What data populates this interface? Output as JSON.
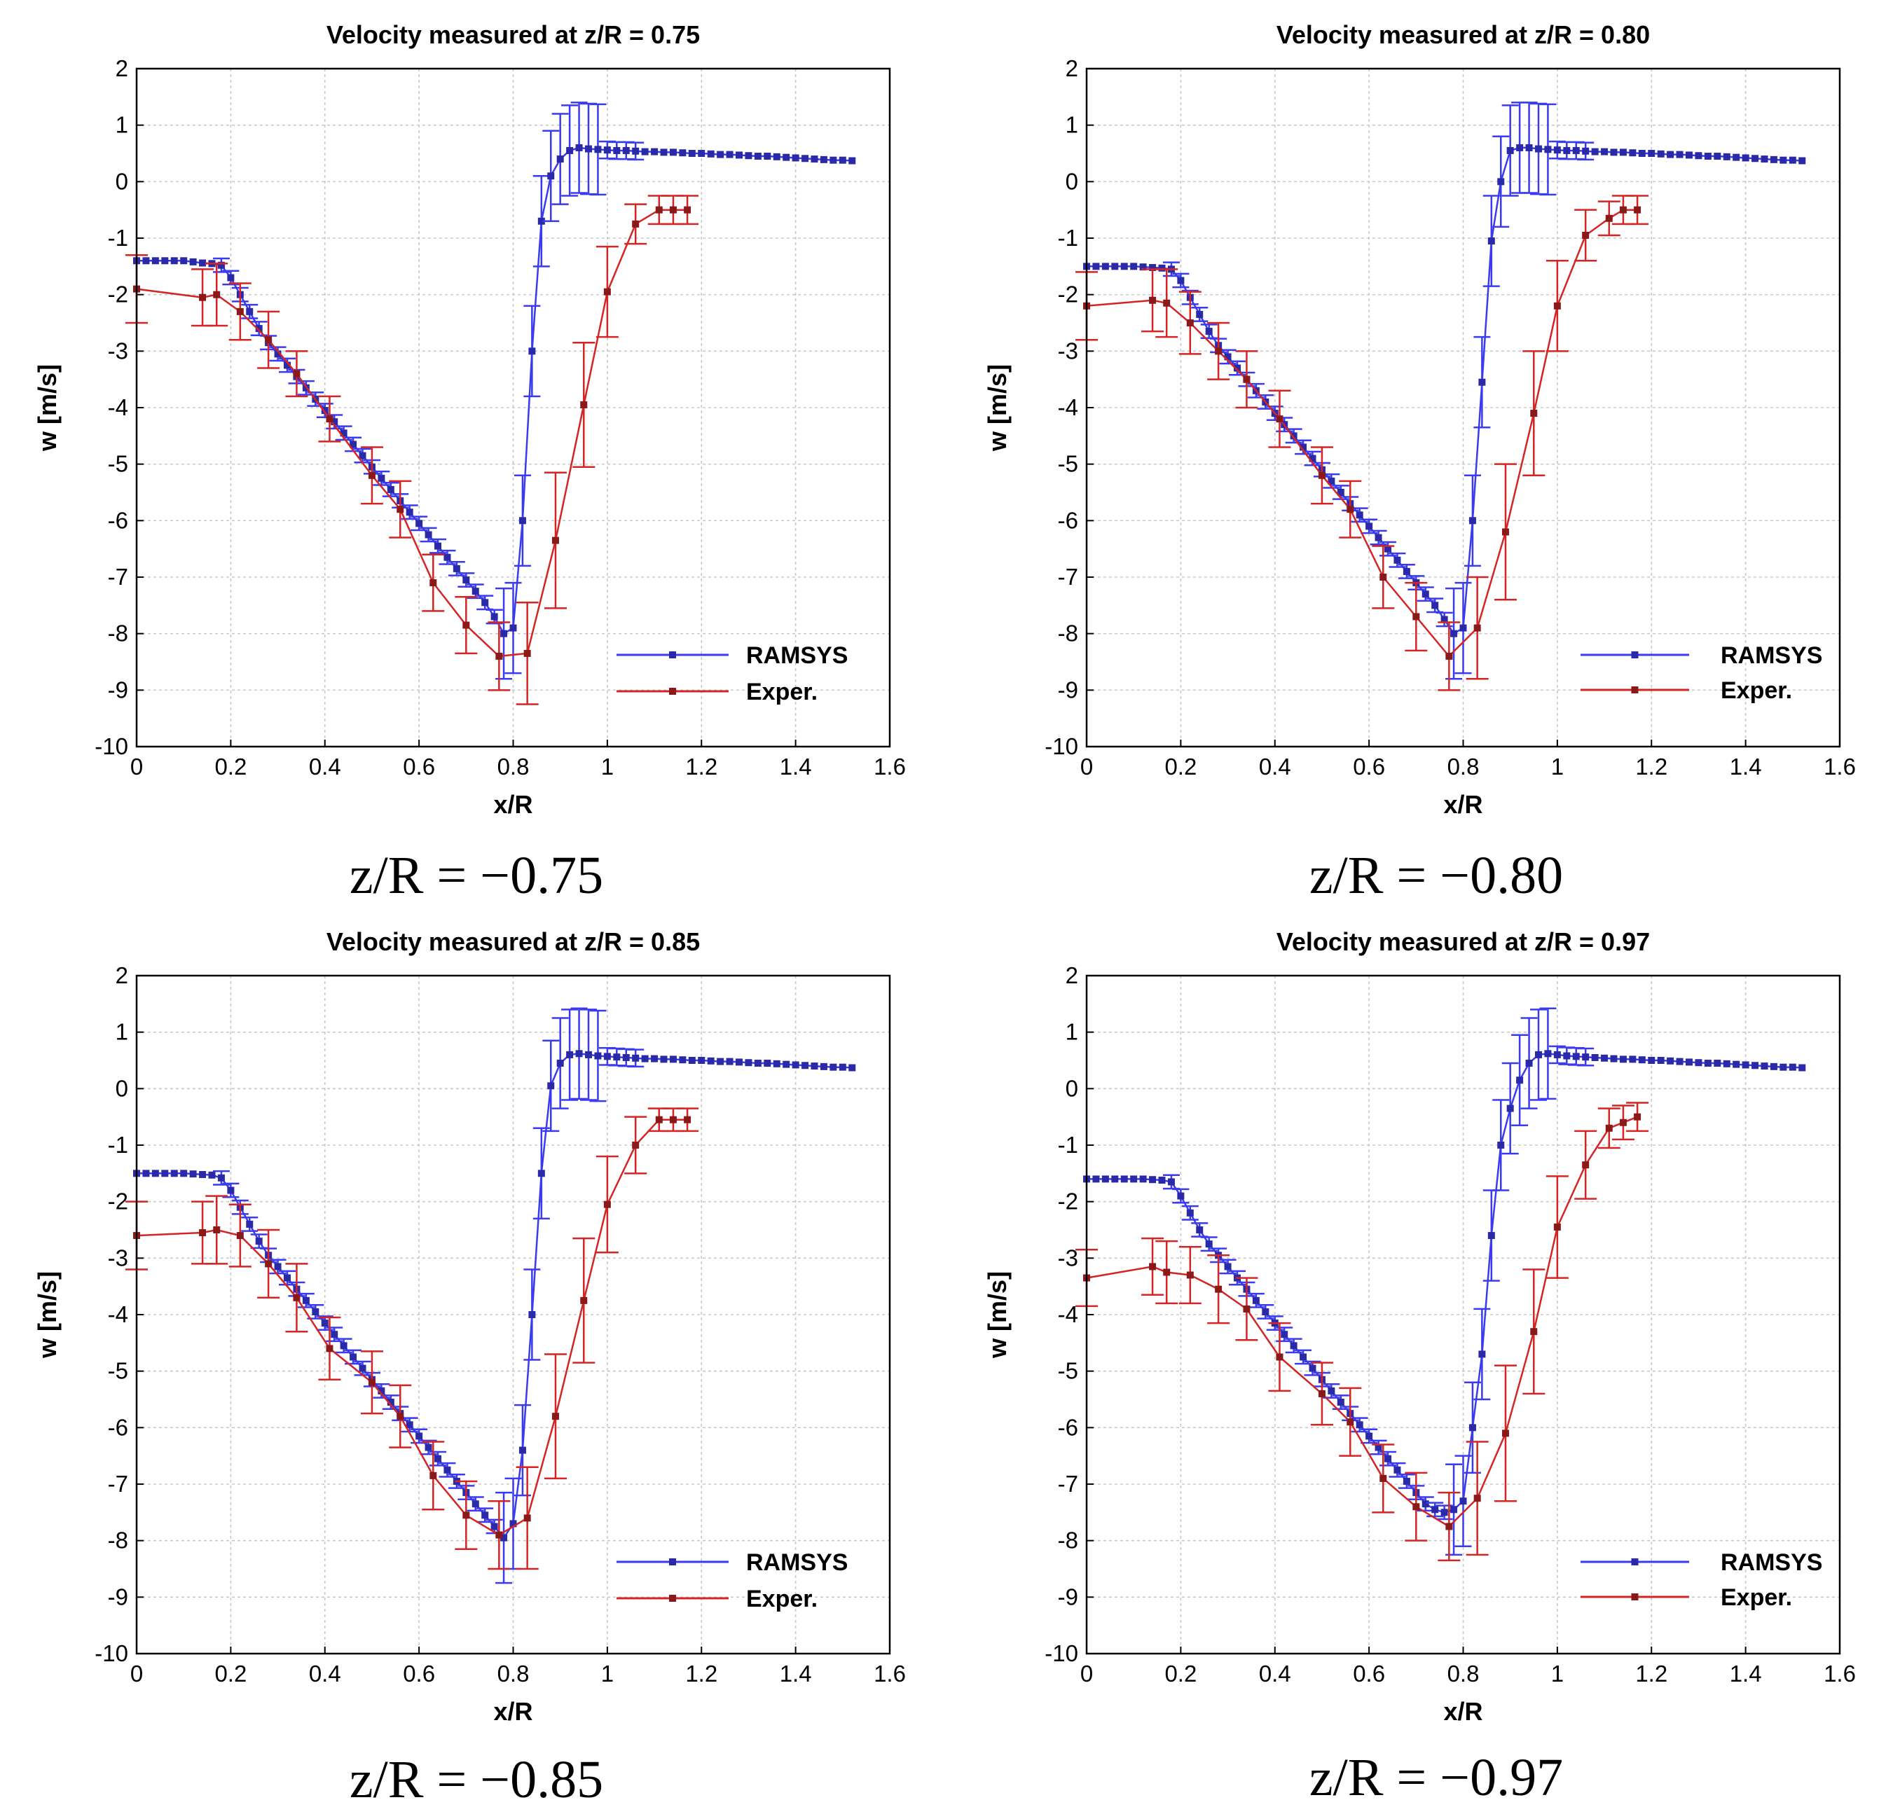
{
  "figure": {
    "series_colors": {
      "RAMSYS": "#3a3af0",
      "Exper.": "#d42424"
    }
  },
  "chart_data": [
    {
      "type": "line",
      "title": "Velocity measured at z/R = 0.75",
      "xlabel": "x/R",
      "ylabel": "w [m/s]",
      "xlim": [
        0,
        1.6
      ],
      "ylim": [
        -10,
        2
      ],
      "xticks": [
        "0",
        "0.2",
        "0.4",
        "0.6",
        "0.8",
        "1",
        "1.2",
        "1.4",
        "1.6"
      ],
      "yticks": [
        "2",
        "1",
        "0",
        "-1",
        "-2",
        "-3",
        "-4",
        "-5",
        "-6",
        "-7",
        "-8",
        "-9",
        "-10"
      ],
      "grid": true,
      "legend_position": "bottom-right",
      "caption": "z/R = −0.75",
      "series": [
        {
          "name": "RAMSYS",
          "color": "#3a3af0",
          "x": [
            0,
            0.02,
            0.04,
            0.06,
            0.08,
            0.1,
            0.12,
            0.14,
            0.16,
            0.18,
            0.2,
            0.22,
            0.24,
            0.26,
            0.28,
            0.3,
            0.32,
            0.34,
            0.36,
            0.38,
            0.4,
            0.42,
            0.44,
            0.46,
            0.48,
            0.5,
            0.52,
            0.54,
            0.56,
            0.58,
            0.6,
            0.62,
            0.64,
            0.66,
            0.68,
            0.7,
            0.72,
            0.74,
            0.76,
            0.78,
            0.8,
            0.82,
            0.84,
            0.86,
            0.88,
            0.9,
            0.92,
            0.94,
            0.96,
            0.98,
            1.0,
            1.02,
            1.04,
            1.06,
            1.08,
            1.1,
            1.12,
            1.14,
            1.16,
            1.18,
            1.2,
            1.22,
            1.24,
            1.26,
            1.28,
            1.3,
            1.32,
            1.34,
            1.36,
            1.38,
            1.4,
            1.42,
            1.44,
            1.46,
            1.48,
            1.5,
            1.52
          ],
          "y": [
            -1.4,
            -1.4,
            -1.4,
            -1.4,
            -1.4,
            -1.4,
            -1.42,
            -1.44,
            -1.45,
            -1.48,
            -1.7,
            -2.0,
            -2.3,
            -2.6,
            -2.85,
            -3.05,
            -3.25,
            -3.45,
            -3.65,
            -3.85,
            -4.05,
            -4.25,
            -4.45,
            -4.65,
            -4.85,
            -5.05,
            -5.25,
            -5.45,
            -5.65,
            -5.85,
            -6.05,
            -6.25,
            -6.45,
            -6.65,
            -6.85,
            -7.05,
            -7.25,
            -7.45,
            -7.7,
            -8.0,
            -7.9,
            -6.0,
            -3.0,
            -0.7,
            0.1,
            0.4,
            0.55,
            0.6,
            0.58,
            0.57,
            0.56,
            0.55,
            0.55,
            0.54,
            0.53,
            0.53,
            0.52,
            0.52,
            0.51,
            0.5,
            0.5,
            0.49,
            0.48,
            0.48,
            0.47,
            0.46,
            0.45,
            0.45,
            0.44,
            0.43,
            0.42,
            0.41,
            0.4,
            0.39,
            0.38,
            0.38,
            0.37
          ]
        },
        {
          "name": "Exper.",
          "color": "#d42424",
          "x": [
            0,
            0.14,
            0.17,
            0.22,
            0.28,
            0.34,
            0.41,
            0.5,
            0.56,
            0.63,
            0.7,
            0.77,
            0.83,
            0.89,
            0.95,
            1.0,
            1.06,
            1.11,
            1.14,
            1.17
          ],
          "y": [
            -1.9,
            -2.05,
            -2.0,
            -2.3,
            -2.8,
            -3.4,
            -4.2,
            -5.2,
            -5.8,
            -7.1,
            -7.85,
            -8.4,
            -8.35,
            -6.35,
            -3.95,
            -1.95,
            -0.75,
            -0.5,
            -0.5,
            -0.5
          ],
          "err": [
            0.6,
            0.5,
            0.55,
            0.5,
            0.5,
            0.4,
            0.4,
            0.5,
            0.5,
            0.5,
            0.5,
            0.6,
            0.9,
            1.2,
            1.1,
            0.8,
            0.35,
            0.25,
            0.25,
            0.25
          ]
        }
      ]
    },
    {
      "type": "line",
      "title": "Velocity measured at z/R = 0.80",
      "xlabel": "x/R",
      "ylabel": "w [m/s]",
      "xlim": [
        0,
        1.6
      ],
      "ylim": [
        -10,
        2
      ],
      "xticks": [
        "0",
        "0.2",
        "0.4",
        "0.6",
        "0.8",
        "1",
        "1.2",
        "1.4",
        "1.6"
      ],
      "yticks": [
        "2",
        "1",
        "0",
        "-1",
        "-2",
        "-3",
        "-4",
        "-5",
        "-6",
        "-7",
        "-8",
        "-9",
        "-10"
      ],
      "grid": true,
      "legend_position": "bottom-right",
      "caption": "z/R = −0.80",
      "series": [
        {
          "name": "RAMSYS",
          "color": "#3a3af0",
          "x": [
            0,
            0.02,
            0.04,
            0.06,
            0.08,
            0.1,
            0.12,
            0.14,
            0.16,
            0.18,
            0.2,
            0.22,
            0.24,
            0.26,
            0.28,
            0.3,
            0.32,
            0.34,
            0.36,
            0.38,
            0.4,
            0.42,
            0.44,
            0.46,
            0.48,
            0.5,
            0.52,
            0.54,
            0.56,
            0.58,
            0.6,
            0.62,
            0.64,
            0.66,
            0.68,
            0.7,
            0.72,
            0.74,
            0.76,
            0.78,
            0.8,
            0.82,
            0.84,
            0.86,
            0.88,
            0.9,
            0.92,
            0.94,
            0.96,
            0.98,
            1.0,
            1.02,
            1.04,
            1.06,
            1.08,
            1.1,
            1.12,
            1.14,
            1.16,
            1.18,
            1.2,
            1.22,
            1.24,
            1.26,
            1.28,
            1.3,
            1.32,
            1.34,
            1.36,
            1.38,
            1.4,
            1.42,
            1.44,
            1.46,
            1.48,
            1.5,
            1.52
          ],
          "y": [
            -1.5,
            -1.5,
            -1.5,
            -1.5,
            -1.5,
            -1.5,
            -1.51,
            -1.52,
            -1.53,
            -1.55,
            -1.75,
            -2.05,
            -2.35,
            -2.65,
            -2.9,
            -3.1,
            -3.3,
            -3.5,
            -3.7,
            -3.9,
            -4.1,
            -4.3,
            -4.5,
            -4.7,
            -4.9,
            -5.1,
            -5.3,
            -5.5,
            -5.7,
            -5.9,
            -6.1,
            -6.3,
            -6.5,
            -6.7,
            -6.9,
            -7.1,
            -7.3,
            -7.5,
            -7.75,
            -8.0,
            -7.9,
            -6.0,
            -3.55,
            -1.05,
            0.0,
            0.55,
            0.6,
            0.6,
            0.58,
            0.57,
            0.56,
            0.55,
            0.55,
            0.54,
            0.53,
            0.53,
            0.52,
            0.52,
            0.51,
            0.5,
            0.5,
            0.49,
            0.48,
            0.48,
            0.47,
            0.46,
            0.45,
            0.45,
            0.44,
            0.43,
            0.42,
            0.41,
            0.4,
            0.39,
            0.38,
            0.38,
            0.37
          ]
        },
        {
          "name": "Exper.",
          "color": "#d42424",
          "x": [
            0,
            0.14,
            0.17,
            0.22,
            0.28,
            0.34,
            0.41,
            0.5,
            0.56,
            0.63,
            0.7,
            0.77,
            0.83,
            0.89,
            0.95,
            1.0,
            1.06,
            1.11,
            1.14,
            1.17
          ],
          "y": [
            -2.2,
            -2.1,
            -2.15,
            -2.5,
            -3.0,
            -3.5,
            -4.2,
            -5.2,
            -5.8,
            -7.0,
            -7.7,
            -8.4,
            -7.9,
            -6.2,
            -4.1,
            -2.2,
            -0.95,
            -0.65,
            -0.5,
            -0.5
          ],
          "err": [
            0.6,
            0.55,
            0.6,
            0.55,
            0.5,
            0.5,
            0.5,
            0.5,
            0.5,
            0.55,
            0.6,
            0.6,
            0.9,
            1.2,
            1.1,
            0.8,
            0.45,
            0.3,
            0.25,
            0.25
          ]
        }
      ]
    },
    {
      "type": "line",
      "title": "Velocity measured at z/R = 0.85",
      "xlabel": "x/R",
      "ylabel": "w [m/s]",
      "xlim": [
        0,
        1.6
      ],
      "ylim": [
        -10,
        2
      ],
      "xticks": [
        "0",
        "0.2",
        "0.4",
        "0.6",
        "0.8",
        "1",
        "1.2",
        "1.4",
        "1.6"
      ],
      "yticks": [
        "2",
        "1",
        "0",
        "-1",
        "-2",
        "-3",
        "-4",
        "-5",
        "-6",
        "-7",
        "-8",
        "-9",
        "-10"
      ],
      "grid": true,
      "legend_position": "bottom-right",
      "caption": "z/R = −0.85",
      "series": [
        {
          "name": "RAMSYS",
          "color": "#3a3af0",
          "x": [
            0,
            0.02,
            0.04,
            0.06,
            0.08,
            0.1,
            0.12,
            0.14,
            0.16,
            0.18,
            0.2,
            0.22,
            0.24,
            0.26,
            0.28,
            0.3,
            0.32,
            0.34,
            0.36,
            0.38,
            0.4,
            0.42,
            0.44,
            0.46,
            0.48,
            0.5,
            0.52,
            0.54,
            0.56,
            0.58,
            0.6,
            0.62,
            0.64,
            0.66,
            0.68,
            0.7,
            0.72,
            0.74,
            0.76,
            0.78,
            0.8,
            0.82,
            0.84,
            0.86,
            0.88,
            0.9,
            0.92,
            0.94,
            0.96,
            0.98,
            1.0,
            1.02,
            1.04,
            1.06,
            1.08,
            1.1,
            1.12,
            1.14,
            1.16,
            1.18,
            1.2,
            1.22,
            1.24,
            1.26,
            1.28,
            1.3,
            1.32,
            1.34,
            1.36,
            1.38,
            1.4,
            1.42,
            1.44,
            1.46,
            1.48,
            1.5,
            1.52
          ],
          "y": [
            -1.5,
            -1.5,
            -1.5,
            -1.5,
            -1.5,
            -1.5,
            -1.51,
            -1.52,
            -1.53,
            -1.58,
            -1.8,
            -2.1,
            -2.4,
            -2.7,
            -2.95,
            -3.15,
            -3.35,
            -3.55,
            -3.75,
            -3.95,
            -4.15,
            -4.35,
            -4.55,
            -4.75,
            -4.95,
            -5.15,
            -5.35,
            -5.55,
            -5.75,
            -5.95,
            -6.15,
            -6.35,
            -6.55,
            -6.75,
            -6.95,
            -7.15,
            -7.35,
            -7.55,
            -7.75,
            -7.95,
            -7.7,
            -6.4,
            -4.0,
            -1.5,
            0.05,
            0.45,
            0.6,
            0.62,
            0.6,
            0.58,
            0.57,
            0.56,
            0.55,
            0.54,
            0.53,
            0.53,
            0.52,
            0.52,
            0.51,
            0.5,
            0.5,
            0.49,
            0.48,
            0.48,
            0.47,
            0.46,
            0.45,
            0.45,
            0.44,
            0.43,
            0.42,
            0.41,
            0.4,
            0.39,
            0.38,
            0.38,
            0.37
          ]
        },
        {
          "name": "Exper.",
          "color": "#d42424",
          "x": [
            0,
            0.14,
            0.17,
            0.22,
            0.28,
            0.34,
            0.41,
            0.5,
            0.56,
            0.63,
            0.7,
            0.77,
            0.83,
            0.89,
            0.95,
            1.0,
            1.06,
            1.11,
            1.14,
            1.17
          ],
          "y": [
            -2.6,
            -2.55,
            -2.5,
            -2.6,
            -3.1,
            -3.7,
            -4.6,
            -5.2,
            -5.8,
            -6.85,
            -7.55,
            -7.9,
            -7.6,
            -5.8,
            -3.75,
            -2.05,
            -1.0,
            -0.55,
            -0.55,
            -0.55
          ],
          "err": [
            0.6,
            0.55,
            0.6,
            0.55,
            0.6,
            0.6,
            0.55,
            0.55,
            0.55,
            0.6,
            0.6,
            0.6,
            0.9,
            1.1,
            1.1,
            0.85,
            0.5,
            0.2,
            0.2,
            0.2
          ]
        }
      ]
    },
    {
      "type": "line",
      "title": "Velocity measured at z/R = 0.97",
      "xlabel": "x/R",
      "ylabel": "w [m/s]",
      "xlim": [
        0,
        1.6
      ],
      "ylim": [
        -10,
        2
      ],
      "xticks": [
        "0",
        "0.2",
        "0.4",
        "0.6",
        "0.8",
        "1",
        "1.2",
        "1.4",
        "1.6"
      ],
      "yticks": [
        "2",
        "1",
        "0",
        "-1",
        "-2",
        "-3",
        "-4",
        "-5",
        "-6",
        "-7",
        "-8",
        "-9",
        "-10"
      ],
      "grid": true,
      "legend_position": "bottom-right",
      "caption": "z/R = −0.97",
      "series": [
        {
          "name": "RAMSYS",
          "color": "#3a3af0",
          "x": [
            0,
            0.02,
            0.04,
            0.06,
            0.08,
            0.1,
            0.12,
            0.14,
            0.16,
            0.18,
            0.2,
            0.22,
            0.24,
            0.26,
            0.28,
            0.3,
            0.32,
            0.34,
            0.36,
            0.38,
            0.4,
            0.42,
            0.44,
            0.46,
            0.48,
            0.5,
            0.52,
            0.54,
            0.56,
            0.58,
            0.6,
            0.62,
            0.64,
            0.66,
            0.68,
            0.7,
            0.72,
            0.74,
            0.76,
            0.78,
            0.8,
            0.82,
            0.84,
            0.86,
            0.88,
            0.9,
            0.92,
            0.94,
            0.96,
            0.98,
            1.0,
            1.02,
            1.04,
            1.06,
            1.08,
            1.1,
            1.12,
            1.14,
            1.16,
            1.18,
            1.2,
            1.22,
            1.24,
            1.26,
            1.28,
            1.3,
            1.32,
            1.34,
            1.36,
            1.38,
            1.4,
            1.42,
            1.44,
            1.46,
            1.48,
            1.5,
            1.52
          ],
          "y": [
            -1.6,
            -1.6,
            -1.6,
            -1.6,
            -1.6,
            -1.6,
            -1.6,
            -1.61,
            -1.62,
            -1.65,
            -1.9,
            -2.2,
            -2.5,
            -2.75,
            -2.95,
            -3.15,
            -3.35,
            -3.55,
            -3.75,
            -3.95,
            -4.15,
            -4.35,
            -4.55,
            -4.75,
            -4.95,
            -5.15,
            -5.35,
            -5.55,
            -5.75,
            -5.95,
            -6.15,
            -6.35,
            -6.55,
            -6.75,
            -6.95,
            -7.15,
            -7.35,
            -7.45,
            -7.5,
            -7.45,
            -7.3,
            -6.0,
            -4.7,
            -2.6,
            -1.0,
            -0.35,
            0.15,
            0.45,
            0.6,
            0.62,
            0.6,
            0.58,
            0.57,
            0.56,
            0.55,
            0.54,
            0.53,
            0.52,
            0.52,
            0.51,
            0.5,
            0.5,
            0.49,
            0.48,
            0.47,
            0.46,
            0.45,
            0.45,
            0.44,
            0.43,
            0.42,
            0.41,
            0.4,
            0.39,
            0.38,
            0.38,
            0.37
          ]
        },
        {
          "name": "Exper.",
          "color": "#d42424",
          "x": [
            0,
            0.14,
            0.17,
            0.22,
            0.28,
            0.34,
            0.41,
            0.5,
            0.56,
            0.63,
            0.7,
            0.77,
            0.83,
            0.89,
            0.95,
            1.0,
            1.06,
            1.11,
            1.14,
            1.17
          ],
          "y": [
            -3.35,
            -3.15,
            -3.25,
            -3.3,
            -3.55,
            -3.9,
            -4.75,
            -5.4,
            -5.9,
            -6.9,
            -7.4,
            -7.75,
            -7.25,
            -6.1,
            -4.3,
            -2.45,
            -1.35,
            -0.7,
            -0.6,
            -0.5
          ],
          "err": [
            0.5,
            0.5,
            0.55,
            0.5,
            0.6,
            0.55,
            0.6,
            0.55,
            0.6,
            0.6,
            0.6,
            0.6,
            1.0,
            1.2,
            1.1,
            0.9,
            0.6,
            0.35,
            0.3,
            0.25
          ]
        }
      ]
    }
  ]
}
